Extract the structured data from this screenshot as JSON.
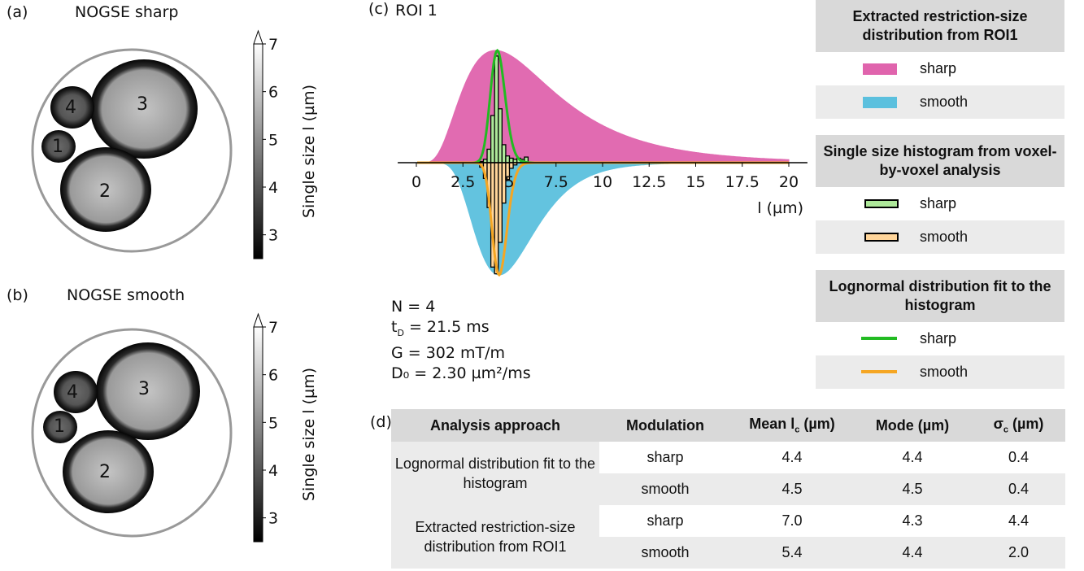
{
  "panels": {
    "a": {
      "label": "(a)",
      "title": "NOGSE sharp"
    },
    "b": {
      "label": "(b)",
      "title": "NOGSE smooth"
    },
    "c": {
      "label": "(c)",
      "title": "ROI 1"
    },
    "d": {
      "label": "(d)"
    }
  },
  "colorbar": {
    "label": "Single size l (µm)",
    "ticks": [
      "3",
      "4",
      "5",
      "6",
      "7"
    ],
    "min": 2.5,
    "max": 7,
    "extend": "max"
  },
  "roi_labels": [
    "1",
    "2",
    "3",
    "4"
  ],
  "chart_data": {
    "type": "area",
    "xlabel": "l (µm)",
    "xticks": [
      "0",
      "2.5",
      "5",
      "7.5",
      "10",
      "12.5",
      "15",
      "17.5",
      "20"
    ],
    "xlim": [
      -1,
      21
    ],
    "series": [
      {
        "name": "sharp",
        "kind": "extracted distribution",
        "direction": "up",
        "color": "#e064ad",
        "mean": 7.0,
        "mode": 4.3,
        "sigma": 4.4
      },
      {
        "name": "smooth",
        "kind": "extracted distribution",
        "direction": "down",
        "color": "#5bc0de",
        "mean": 5.4,
        "mode": 4.4,
        "sigma": 2.0
      },
      {
        "name": "sharp",
        "kind": "lognormal fit",
        "direction": "up",
        "color": "#22bb22",
        "mean": 4.4,
        "mode": 4.4,
        "sigma": 0.4
      },
      {
        "name": "smooth",
        "kind": "lognormal fit",
        "direction": "down",
        "color": "#f5a623",
        "mean": 4.5,
        "mode": 4.5,
        "sigma": 0.4
      },
      {
        "name": "sharp",
        "kind": "histogram",
        "direction": "up",
        "color": "#aee89a",
        "bins": [
          3.4,
          3.6,
          3.8,
          4.0,
          4.2,
          4.4,
          4.6,
          4.8,
          5.0,
          5.2,
          5.4,
          5.6,
          5.8,
          6.0
        ],
        "values": [
          0.01,
          0.03,
          0.12,
          0.42,
          0.95,
          0.48,
          0.16,
          0.06,
          0.04,
          0.03,
          0.04,
          0.03,
          0.05
        ]
      },
      {
        "name": "smooth",
        "kind": "histogram",
        "direction": "down",
        "color": "#ffd59a",
        "bins": [
          3.4,
          3.6,
          3.8,
          4.0,
          4.2,
          4.4,
          4.6,
          4.8,
          5.0,
          5.2,
          5.4
        ],
        "values": [
          0.04,
          0.14,
          0.4,
          0.93,
          0.99,
          0.71,
          0.36,
          0.15,
          0.05,
          0.02
        ]
      }
    ]
  },
  "params": {
    "n": "N = 4",
    "td_prefix": "t",
    "td_sub": "D",
    "td_rest": " = 21.5 ms",
    "g": "G = 302 mT/m",
    "d0": "D₀ = 2.30 µm²/ms"
  },
  "legend": {
    "group1": {
      "title": "Extracted restriction-size distribution from ROI1",
      "items": [
        "sharp",
        "smooth"
      ],
      "colors": [
        "#e064ad",
        "#5bc0de"
      ]
    },
    "group2": {
      "title": "Single size histogram from voxel-by-voxel analysis",
      "items": [
        "sharp",
        "smooth"
      ],
      "colors": [
        "#aee89a",
        "#ffd59a"
      ]
    },
    "group3": {
      "title": "Lognormal distribution fit to the histogram",
      "items": [
        "sharp",
        "smooth"
      ],
      "colors": [
        "#22bb22",
        "#f5a623"
      ]
    }
  },
  "table": {
    "headers": [
      "Analysis approach",
      "Modulation",
      "Mean lc (µm)",
      "Mode (µm)",
      "σc (µm)"
    ],
    "groups": [
      {
        "approach": "Lognormal distribution fit to the histogram",
        "rows": [
          [
            "sharp",
            "4.4",
            "4.4",
            "0.4"
          ],
          [
            "smooth",
            "4.5",
            "4.5",
            "0.4"
          ]
        ]
      },
      {
        "approach": "Extracted restriction-size distribution from ROI1",
        "rows": [
          [
            "sharp",
            "7.0",
            "4.3",
            "4.4"
          ],
          [
            "smooth",
            "5.4",
            "4.4",
            "2.0"
          ]
        ]
      }
    ]
  }
}
